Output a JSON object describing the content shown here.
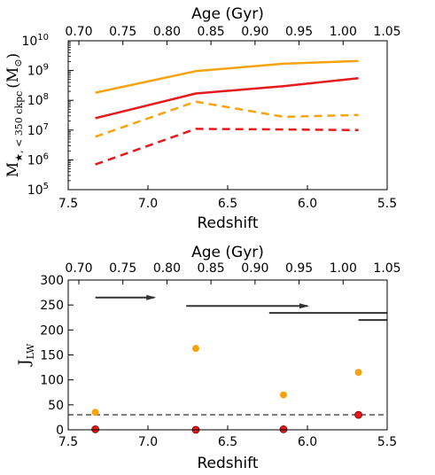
{
  "chart_data": [
    {
      "type": "line",
      "x_axis": {
        "label": "Redshift",
        "lim": [
          7.5,
          5.5
        ],
        "ticks": [
          "7.5",
          "7.0",
          "6.5",
          "6.0",
          "5.5"
        ]
      },
      "top_axis": {
        "label": "Age (Gyr)",
        "ticks": [
          "0.70",
          "0.75",
          "0.80",
          "0.85",
          "0.90",
          "0.95",
          "1.00",
          "1.05"
        ]
      },
      "y_axis": {
        "label_main": "M",
        "label_sub": "★, < 350 ckpc",
        "label_unit_open": "(M",
        "label_unit_sub": "⊙",
        "label_unit_close": ")",
        "scale": "log",
        "lim_exp": [
          5,
          10
        ],
        "ticks": [
          {
            "exp": 5,
            "base": "10",
            "sup": "5"
          },
          {
            "exp": 6,
            "base": "10",
            "sup": "6"
          },
          {
            "exp": 7,
            "base": "10",
            "sup": "7"
          },
          {
            "exp": 8,
            "base": "10",
            "sup": "8"
          },
          {
            "exp": 9,
            "base": "10",
            "sup": "9"
          },
          {
            "exp": 10,
            "base": "10",
            "sup": "10"
          }
        ]
      },
      "series": [
        {
          "color": "#f5a30f",
          "style": "solid",
          "x": [
            7.33,
            6.7,
            6.15,
            5.68
          ],
          "y": [
            180000000.0,
            950000000.0,
            1700000000.0,
            2100000000.0
          ]
        },
        {
          "color": "#e41a1c",
          "style": "solid",
          "x": [
            7.33,
            6.7,
            6.15,
            5.68
          ],
          "y": [
            25000000.0,
            170000000.0,
            300000000.0,
            550000000.0
          ]
        },
        {
          "color": "#f5a30f",
          "style": "dashed",
          "x": [
            7.33,
            6.7,
            6.15,
            5.68
          ],
          "y": [
            6000000.0,
            90000000.0,
            28000000.0,
            32000000.0
          ]
        },
        {
          "color": "#e41a1c",
          "style": "dashed",
          "x": [
            7.33,
            6.7,
            6.15,
            5.68
          ],
          "y": [
            700000.0,
            11000000.0,
            10500000.0,
            10000000.0
          ]
        }
      ]
    },
    {
      "type": "scatter",
      "x_axis": {
        "label": "Redshift",
        "lim": [
          7.5,
          5.5
        ],
        "ticks": [
          "7.5",
          "7.0",
          "6.5",
          "6.0",
          "5.5"
        ]
      },
      "top_axis": {
        "label": "Age (Gyr)",
        "ticks": [
          "0.70",
          "0.75",
          "0.80",
          "0.85",
          "0.90",
          "0.95",
          "1.00",
          "1.05"
        ]
      },
      "y_axis": {
        "label_main": "J",
        "label_sub": "LW",
        "lim": [
          0,
          300
        ],
        "ticks": [
          "0",
          "50",
          "100",
          "150",
          "200",
          "250",
          "300"
        ]
      },
      "series": [
        {
          "color": "#f5a30f",
          "x": [
            7.33,
            6.7,
            6.15,
            5.68
          ],
          "y": [
            35,
            163,
            70,
            115
          ]
        },
        {
          "color": "#e41a1c",
          "x": [
            7.33,
            6.7,
            6.15,
            5.68
          ],
          "y": [
            1,
            0,
            1,
            30
          ]
        }
      ],
      "reference_line": {
        "y": 30,
        "style": "dashed",
        "color": "#777777"
      },
      "arrows": [
        {
          "x_start": 7.33,
          "x_end": 6.96,
          "y": 265
        },
        {
          "x_start": 6.76,
          "x_end": 6.0,
          "y": 248
        },
        {
          "x_start": 6.24,
          "x_end": 5.5,
          "y": 234
        },
        {
          "x_start": 5.68,
          "x_end": 5.5,
          "y": 220
        }
      ]
    }
  ]
}
